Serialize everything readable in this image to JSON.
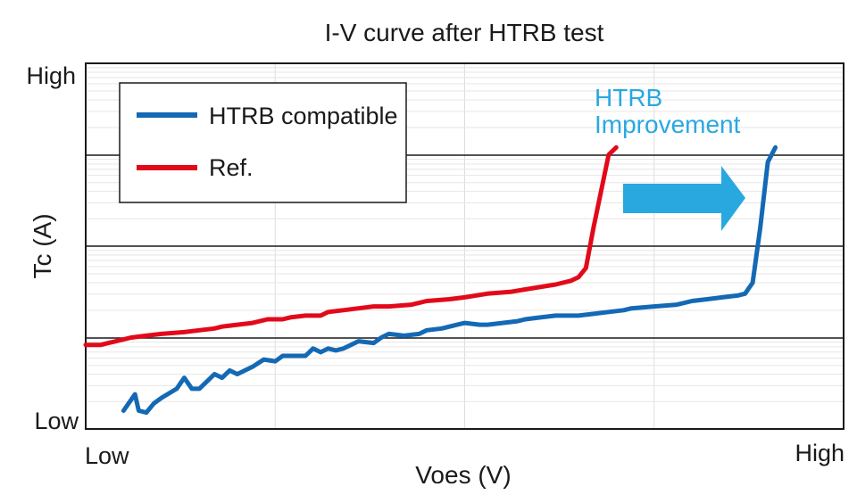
{
  "chart_data": {
    "type": "line",
    "title": "I-V curve after HTRB test",
    "xlabel": "Voes (V)",
    "ylabel": "Tc (A)",
    "x_tick_labels": {
      "low": "Low",
      "high": "High"
    },
    "y_tick_labels": {
      "low": "Low",
      "high": "High"
    },
    "xlim": [
      0,
      100
    ],
    "ylim": [
      0,
      100
    ],
    "grid": true,
    "legend_position": "top-left",
    "annotation": {
      "text_line1": "HTRB",
      "text_line2": "Improvement",
      "color": "#29a8e0"
    },
    "series": [
      {
        "name": "HTRB compatible",
        "color": "#1469b4",
        "x": [
          5,
          6.5,
          7,
          8,
          9,
          10,
          12,
          13,
          14,
          15,
          16,
          17,
          18,
          19,
          20,
          21,
          22,
          23.5,
          25,
          26,
          27,
          29,
          30,
          31,
          32,
          33,
          34,
          35,
          36,
          38,
          39,
          40,
          42,
          44,
          45,
          47,
          48,
          50,
          52,
          53,
          55,
          57,
          58,
          60,
          62,
          65,
          67,
          69,
          71,
          72,
          75,
          78,
          80,
          82,
          84,
          86,
          87,
          88,
          89,
          90,
          91
        ],
        "y": [
          5,
          9.5,
          5,
          4.5,
          7,
          8.5,
          11,
          14,
          11,
          11,
          13,
          15,
          14,
          16,
          15,
          16,
          17,
          19,
          18.5,
          20,
          20,
          20,
          22,
          21,
          22,
          21.5,
          22,
          23,
          24,
          23.5,
          25,
          26,
          25.5,
          26,
          27,
          27.5,
          28,
          29,
          28.5,
          28.5,
          29,
          29.5,
          30,
          30.5,
          31,
          31,
          31.5,
          32,
          32.5,
          33,
          33.5,
          34,
          35,
          35.5,
          36,
          36.5,
          37,
          40,
          55,
          73,
          77
        ]
      },
      {
        "name": "Ref.",
        "color": "#e20a1a",
        "x": [
          0,
          2,
          3,
          4,
          6,
          8,
          10,
          13,
          15,
          17,
          18,
          20,
          22,
          24,
          26,
          27,
          29,
          31,
          32,
          34,
          36,
          38,
          40,
          43,
          45,
          48,
          50,
          53,
          56,
          59,
          62,
          64,
          65,
          66,
          67,
          68,
          69,
          70
        ],
        "y": [
          23,
          23,
          23.5,
          24,
          25,
          25.5,
          26,
          26.5,
          27,
          27.5,
          28,
          28.5,
          29,
          30,
          30,
          30.5,
          31,
          31,
          32,
          32.5,
          33,
          33.5,
          33.5,
          34,
          35,
          35.5,
          36,
          37,
          37.5,
          38.5,
          39.5,
          40.5,
          41.5,
          44,
          55,
          65,
          75,
          77
        ]
      }
    ]
  }
}
